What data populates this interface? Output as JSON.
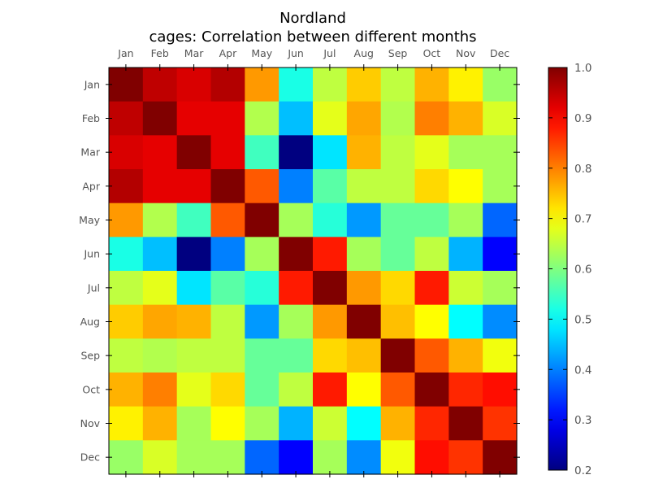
{
  "chart_data": {
    "type": "heatmap",
    "title": "Nordland",
    "subtitle": "cages: Correlation between different months",
    "categories": [
      "Jan",
      "Feb",
      "Mar",
      "Apr",
      "May",
      "Jun",
      "Jul",
      "Aug",
      "Sep",
      "Oct",
      "Nov",
      "Dec"
    ],
    "xlabel": "",
    "ylabel": "",
    "x_tick_position": "top",
    "colormap": "jet",
    "vmin": 0.2,
    "vmax": 1.0,
    "colorbar_ticks": [
      "0.2",
      "0.3",
      "0.4",
      "0.5",
      "0.6",
      "0.7",
      "0.8",
      "0.9",
      "1.0"
    ],
    "grid": false,
    "values": [
      [
        1.0,
        0.95,
        0.93,
        0.96,
        0.78,
        0.52,
        0.65,
        0.74,
        0.65,
        0.76,
        0.71,
        0.62
      ],
      [
        0.95,
        1.0,
        0.92,
        0.92,
        0.64,
        0.45,
        0.68,
        0.77,
        0.64,
        0.8,
        0.76,
        0.67
      ],
      [
        0.93,
        0.92,
        1.0,
        0.92,
        0.55,
        0.2,
        0.48,
        0.76,
        0.65,
        0.68,
        0.63,
        0.63
      ],
      [
        0.96,
        0.92,
        0.92,
        1.0,
        0.83,
        0.4,
        0.57,
        0.65,
        0.65,
        0.73,
        0.7,
        0.63
      ],
      [
        0.78,
        0.64,
        0.55,
        0.83,
        1.0,
        0.63,
        0.53,
        0.42,
        0.58,
        0.58,
        0.63,
        0.38
      ],
      [
        0.52,
        0.45,
        0.2,
        0.4,
        0.63,
        1.0,
        0.88,
        0.63,
        0.58,
        0.65,
        0.44,
        0.3
      ],
      [
        0.65,
        0.68,
        0.48,
        0.57,
        0.53,
        0.88,
        1.0,
        0.78,
        0.73,
        0.88,
        0.66,
        0.63
      ],
      [
        0.74,
        0.77,
        0.76,
        0.65,
        0.42,
        0.63,
        0.78,
        1.0,
        0.75,
        0.7,
        0.5,
        0.41
      ],
      [
        0.65,
        0.64,
        0.65,
        0.65,
        0.58,
        0.58,
        0.73,
        0.75,
        1.0,
        0.83,
        0.76,
        0.69
      ],
      [
        0.76,
        0.8,
        0.68,
        0.73,
        0.58,
        0.65,
        0.88,
        0.7,
        0.83,
        1.0,
        0.87,
        0.89
      ],
      [
        0.71,
        0.76,
        0.63,
        0.7,
        0.63,
        0.44,
        0.66,
        0.5,
        0.76,
        0.87,
        1.0,
        0.86
      ],
      [
        0.62,
        0.67,
        0.63,
        0.63,
        0.38,
        0.3,
        0.63,
        0.41,
        0.69,
        0.89,
        0.86,
        1.0
      ]
    ]
  }
}
